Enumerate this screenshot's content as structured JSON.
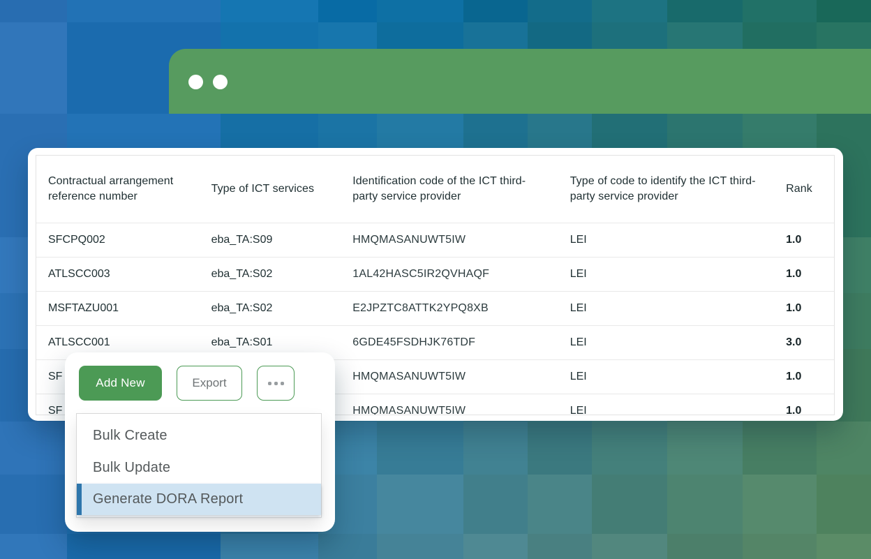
{
  "window": {
    "controls": [
      {
        "icon": "window-dot-icon"
      },
      {
        "icon": "window-dot-icon"
      }
    ]
  },
  "table": {
    "columns": [
      "Contractual arrangement reference number",
      "Type of ICT services",
      "Identification code of the ICT third-party service provider",
      "Type of code to identify the ICT third-party service provider",
      "Rank"
    ],
    "rows": [
      [
        "SFCPQ002",
        "eba_TA:S09",
        "HMQMASANUWT5IW",
        "LEI",
        "1.0"
      ],
      [
        "ATLSCC003",
        "eba_TA:S02",
        "1AL42HASC5IR2QVHAQF",
        "LEI",
        "1.0"
      ],
      [
        "MSFTAZU001",
        "eba_TA:S02",
        "E2JPZTC8ATTK2YPQ8XB",
        "LEI",
        "1.0"
      ],
      [
        "ATLSCC001",
        "eba_TA:S01",
        "6GDE45FSDHJK76TDF",
        "LEI",
        "3.0"
      ],
      [
        "SF",
        "",
        "HMQMASANUWT5IW",
        "LEI",
        "1.0"
      ],
      [
        "SF",
        "",
        "HMQMASANUWT5IW",
        "LEI",
        "1.0"
      ]
    ]
  },
  "toolbar": {
    "add_new_label": "Add New",
    "export_label": "Export",
    "more_icon": "ellipsis-icon"
  },
  "menu": {
    "items": [
      {
        "label": "Bulk Create",
        "highlighted": false
      },
      {
        "label": "Bulk Update",
        "highlighted": false
      },
      {
        "label": "Generate DORA Report",
        "highlighted": true
      }
    ]
  },
  "colors": {
    "accent_green": "#4c9a55",
    "header_bar_green": "#579b5f",
    "menu_highlight_bg": "#cfe3f2",
    "menu_highlight_bar": "#2e76ac"
  }
}
